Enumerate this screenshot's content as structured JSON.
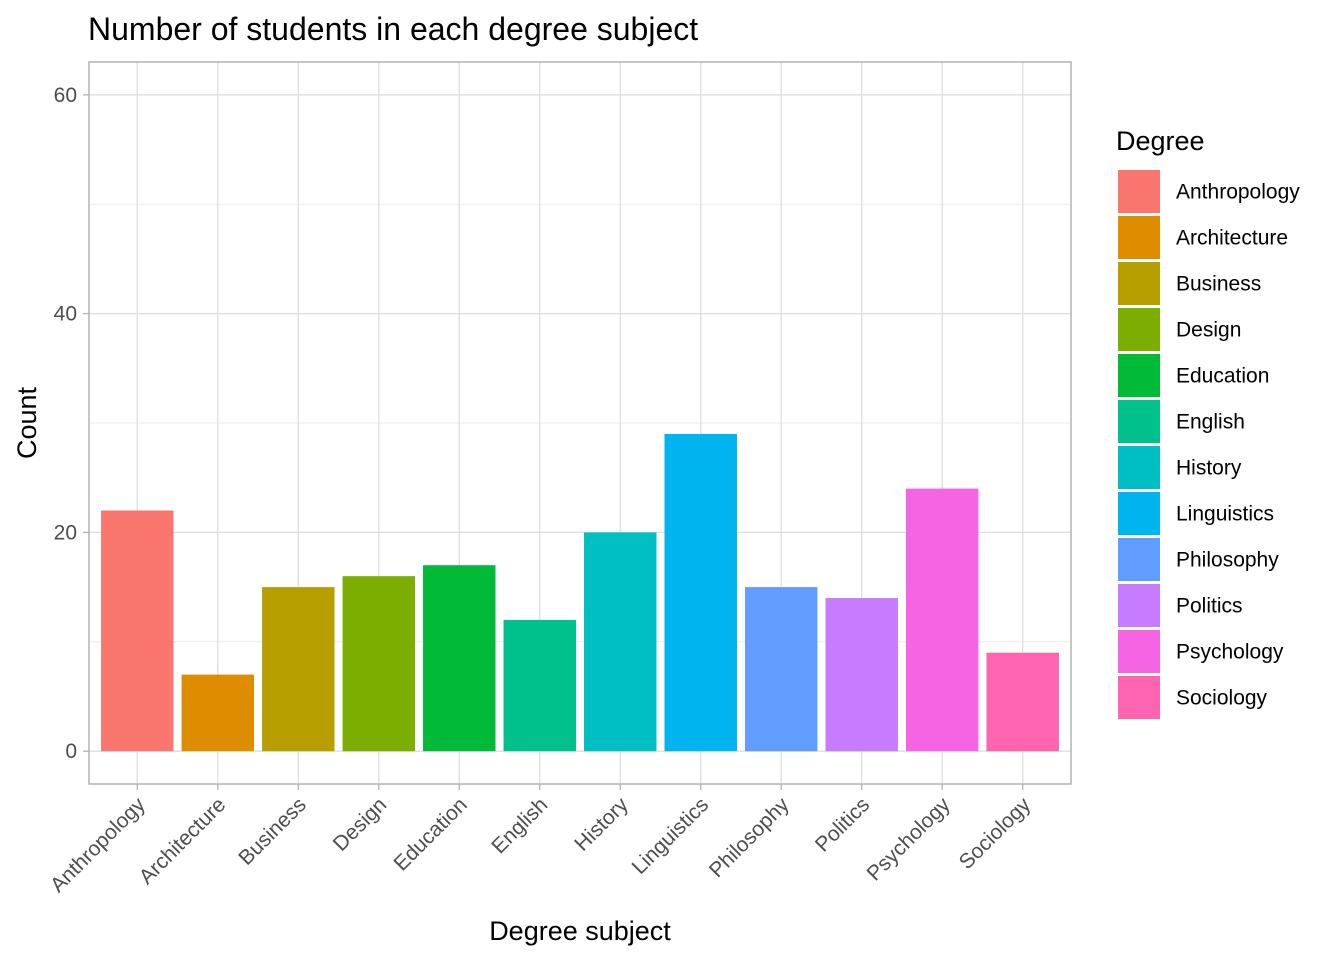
{
  "chart_data": {
    "type": "bar",
    "title": "Number of students in each degree subject",
    "xlabel": "Degree subject",
    "ylabel": "Count",
    "categories": [
      "Anthropology",
      "Architecture",
      "Business",
      "Design",
      "Education",
      "English",
      "History",
      "Linguistics",
      "Philosophy",
      "Politics",
      "Psychology",
      "Sociology"
    ],
    "values": [
      22,
      7,
      15,
      16,
      17,
      12,
      20,
      29,
      15,
      14,
      24,
      9
    ],
    "colors": [
      "#F8766D",
      "#DE8C00",
      "#B79F00",
      "#7CAE00",
      "#00BA38",
      "#00C08B",
      "#00BFC4",
      "#00B4F0",
      "#619CFF",
      "#C77CFF",
      "#F564E3",
      "#FF64B0"
    ],
    "ylim": [
      -3,
      63
    ],
    "yticks": [
      0,
      20,
      40,
      60
    ],
    "ytick_labels": [
      "0",
      "20",
      "40",
      "60"
    ],
    "grid": true,
    "legend": {
      "title": "Degree",
      "placement": "right"
    }
  }
}
